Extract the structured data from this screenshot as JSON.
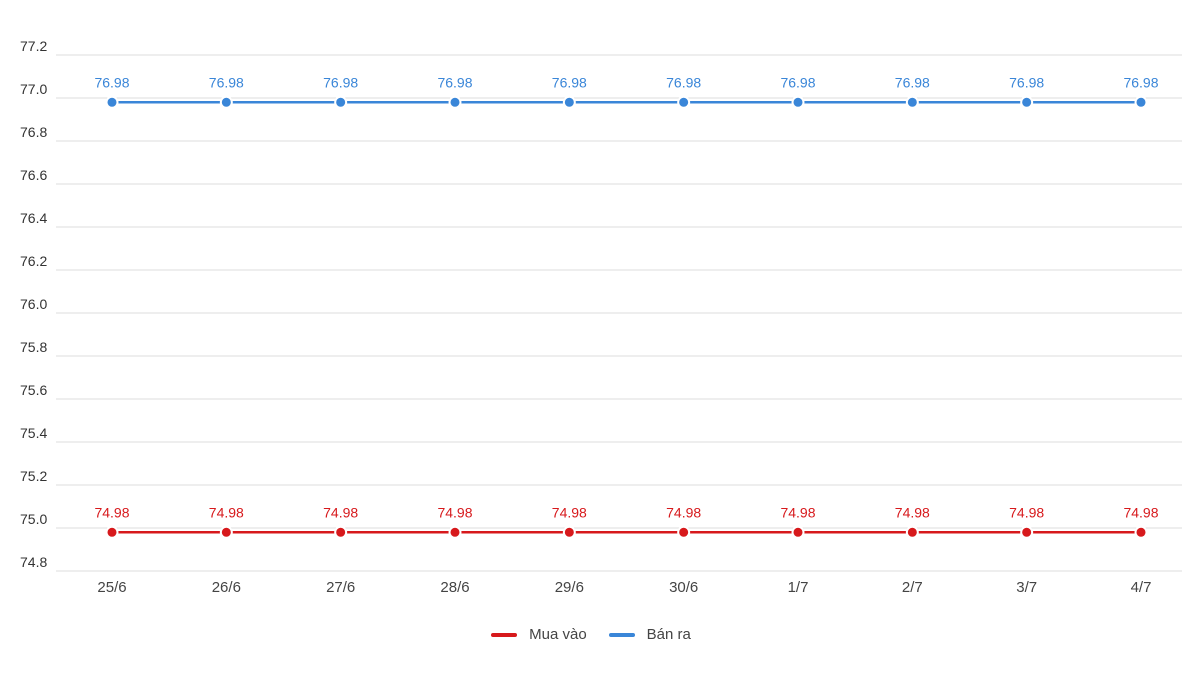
{
  "chart_data": {
    "type": "line",
    "title": "",
    "xlabel": "",
    "ylabel": "",
    "categories": [
      "25/6",
      "26/6",
      "27/6",
      "28/6",
      "29/6",
      "30/6",
      "1/7",
      "2/7",
      "3/7",
      "4/7"
    ],
    "ylim": [
      74.8,
      77.2
    ],
    "yticks": [
      "74.8",
      "75.0",
      "75.2",
      "75.4",
      "75.6",
      "75.8",
      "76.0",
      "76.2",
      "76.4",
      "76.6",
      "76.8",
      "77.0",
      "77.2"
    ],
    "grid": true,
    "legend_position": "bottom-center",
    "series": [
      {
        "name": "Mua vào",
        "color": "#d7191c",
        "values": [
          74.98,
          74.98,
          74.98,
          74.98,
          74.98,
          74.98,
          74.98,
          74.98,
          74.98,
          74.98
        ],
        "labels": [
          "74.98",
          "74.98",
          "74.98",
          "74.98",
          "74.98",
          "74.98",
          "74.98",
          "74.98",
          "74.98",
          "74.98"
        ]
      },
      {
        "name": "Bán ra",
        "color": "#3a86d8",
        "values": [
          76.98,
          76.98,
          76.98,
          76.98,
          76.98,
          76.98,
          76.98,
          76.98,
          76.98,
          76.98
        ],
        "labels": [
          "76.98",
          "76.98",
          "76.98",
          "76.98",
          "76.98",
          "76.98",
          "76.98",
          "76.98",
          "76.98",
          "76.98"
        ]
      }
    ]
  }
}
